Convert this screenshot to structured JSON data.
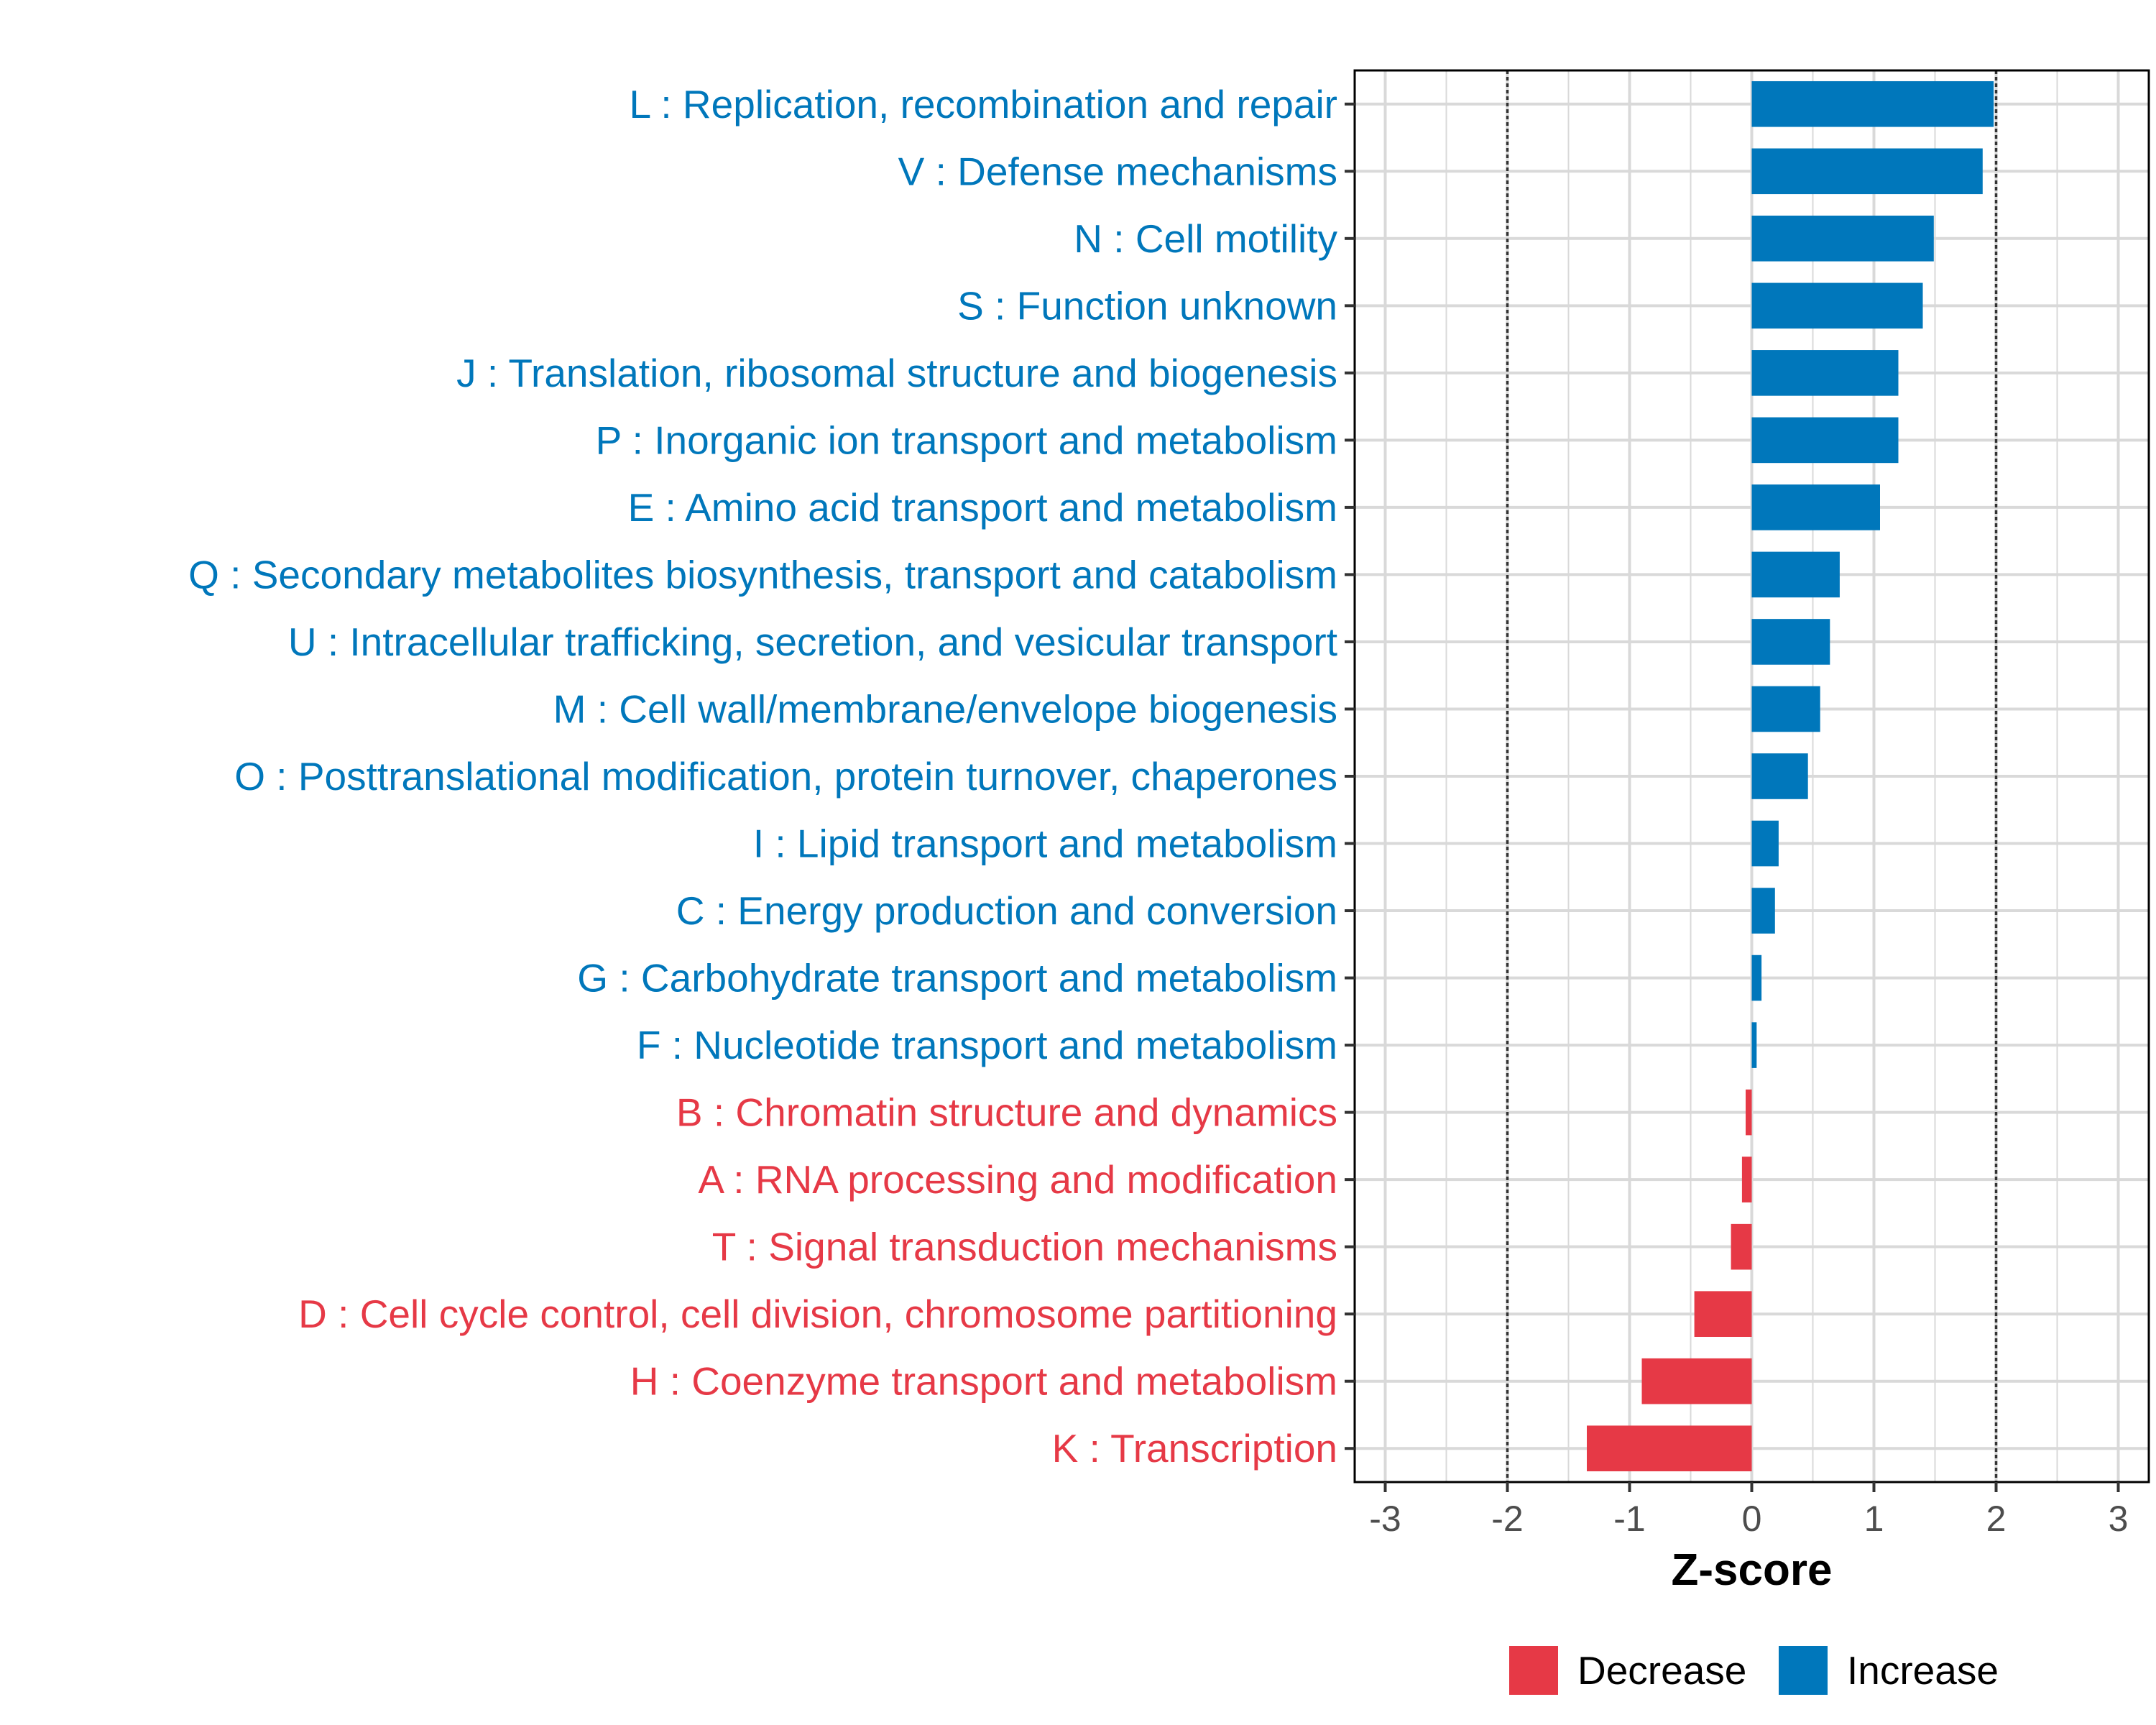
{
  "colors": {
    "increase": "#0077bb",
    "decrease": "#e63946",
    "grid": "#d9d9d9",
    "panel_border": "#000000",
    "threshold": "#333333"
  },
  "chart_data": {
    "type": "bar",
    "orientation": "horizontal",
    "title": "",
    "xlabel": "Z-score",
    "ylabel": "",
    "xlim": [
      -3.25,
      3.25
    ],
    "xticks": [
      -3,
      -2,
      -1,
      0,
      1,
      2,
      3
    ],
    "xtick_labels": [
      "-3",
      "-2",
      "-1",
      "0",
      "1",
      "2",
      "3"
    ],
    "threshold_lines": [
      -2,
      2
    ],
    "grid": true,
    "categories": [
      "L : Replication, recombination and repair",
      "V : Defense mechanisms",
      "N : Cell motility",
      "S : Function unknown",
      "J : Translation, ribosomal structure and biogenesis",
      "P : Inorganic ion transport and metabolism",
      "E : Amino acid transport and metabolism",
      "Q : Secondary metabolites biosynthesis, transport and catabolism",
      "U : Intracellular trafficking, secretion, and vesicular transport",
      "M : Cell wall/membrane/envelope biogenesis",
      "O : Posttranslational modification, protein turnover, chaperones",
      "I : Lipid transport and metabolism",
      "C : Energy production and conversion",
      "G : Carbohydrate transport and metabolism",
      "F : Nucleotide transport and metabolism",
      "B : Chromatin structure and dynamics",
      "A : RNA processing and modification",
      "T : Signal transduction mechanisms",
      "D : Cell cycle control, cell division, chromosome partitioning",
      "H : Coenzyme transport and metabolism",
      "K : Transcription"
    ],
    "values": [
      1.98,
      1.89,
      1.49,
      1.4,
      1.2,
      1.2,
      1.05,
      0.72,
      0.64,
      0.56,
      0.46,
      0.22,
      0.19,
      0.08,
      0.04,
      -0.05,
      -0.08,
      -0.17,
      -0.47,
      -0.9,
      -1.35
    ],
    "groups": [
      "Increase",
      "Increase",
      "Increase",
      "Increase",
      "Increase",
      "Increase",
      "Increase",
      "Increase",
      "Increase",
      "Increase",
      "Increase",
      "Increase",
      "Increase",
      "Increase",
      "Increase",
      "Decrease",
      "Decrease",
      "Decrease",
      "Decrease",
      "Decrease",
      "Decrease"
    ],
    "legend": {
      "position": "bottom",
      "entries": [
        {
          "label": "Decrease",
          "color": "#e63946"
        },
        {
          "label": "Increase",
          "color": "#0077bb"
        }
      ]
    }
  }
}
